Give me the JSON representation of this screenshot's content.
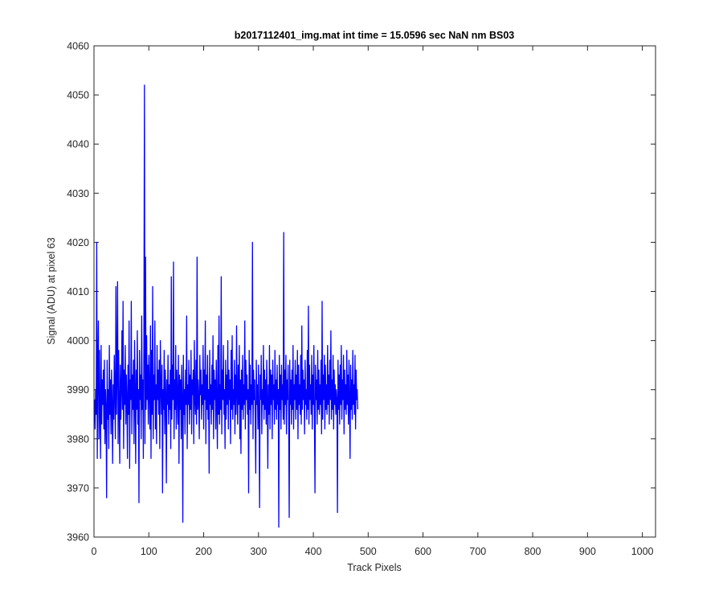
{
  "chart_data": {
    "type": "line",
    "title": "b2017112401_img.mat int time = 15.0596 sec  NaN nm BS03",
    "xlabel": "Track Pixels",
    "ylabel": "Signal (ADU) at pixel 63",
    "xlim": [
      0,
      1024
    ],
    "ylim": [
      3960,
      4060
    ],
    "xticks": [
      0,
      100,
      200,
      300,
      400,
      500,
      600,
      700,
      800,
      900,
      1000
    ],
    "yticks": [
      3960,
      3970,
      3980,
      3990,
      4000,
      4010,
      4020,
      4030,
      4040,
      4050,
      4060
    ],
    "grid": false,
    "legend": "none",
    "series": [
      {
        "color": "#0000ff",
        "x_start": 1,
        "x_step": 1,
        "values": [
          3988,
          3982,
          3990,
          3985,
          4020,
          3976,
          3995,
          4004,
          3980,
          3998,
          3986,
          3976,
          3999,
          3983,
          3992,
          3987,
          3994,
          3982,
          3996,
          3979,
          3990,
          3986,
          3968,
          3996,
          3984,
          3990,
          3978,
          3999,
          3985,
          3992,
          3981,
          3994,
          3987,
          3975,
          3991,
          3984,
          3997,
          3989,
          3980,
          4011,
          3985,
          3993,
          4012,
          3979,
          3998,
          3987,
          3975,
          3995,
          3984,
          3990,
          4002,
          3986,
          4008,
          3978,
          3994,
          3987,
          3999,
          3983,
          3993,
          3988,
          3976,
          3995,
          3985,
          4004,
          3974,
          3992,
          3988,
          4008,
          3981,
          3993,
          3986,
          3996,
          3979,
          4000,
          3990,
          3975,
          3994,
          3986,
          4002,
          3983,
          3990,
          3967,
          3998,
          3988,
          3993,
          3980,
          4005,
          3986,
          3992,
          3976,
          3999,
          4052,
          3979,
          4017,
          3986,
          4001,
          3988,
          3995,
          3983,
          3997,
          3990,
          3982,
          4003,
          3976,
          3998,
          3985,
          4011,
          3980,
          3993,
          3988,
          4004,
          3982,
          3991,
          3979,
          3999,
          3988,
          3994,
          3985,
          3996,
          3978,
          4000,
          3991,
          3985,
          3995,
          3969,
          3990,
          3986,
          3998,
          3981,
          3994,
          3989,
          3971,
          3992,
          3987,
          3997,
          3983,
          3991,
          3986,
          3994,
          3978,
          4013,
          3984,
          3995,
          3988,
          4016,
          3980,
          3992,
          3986,
          3999,
          3982,
          3994,
          3989,
          3983,
          3997,
          3975,
          3993,
          3986,
          3992,
          3980,
          3995,
          3988,
          3963,
          3997,
          3985,
          3990,
          3981,
          3994,
          3987,
          4005,
          3978,
          3991,
          3987,
          3996,
          3983,
          3993,
          3986,
          3998,
          3981,
          3992,
          3989,
          3994,
          3979,
          4000,
          3988,
          3985,
          3996,
          3983,
          4017,
          3986,
          3992,
          3988,
          3980,
          3997,
          3989,
          3994,
          3984,
          3991,
          3987,
          3999,
          3982,
          3994,
          3988,
          4004,
          3979,
          3993,
          3986,
          3997,
          3984,
          3990,
          3973,
          3998,
          3987,
          3991,
          3983,
          3995,
          3986,
          4001,
          3980,
          3994,
          3988,
          3992,
          3982,
          3996,
          3987,
          3978,
          3999,
          3985,
          4005,
          3983,
          3991,
          3986,
          4013,
          3981,
          3994,
          3988,
          3999,
          3985,
          3990,
          3978,
          3996,
          3984,
          3993,
          3987,
          4000,
          3982,
          3994,
          3988,
          3992,
          3979,
          3998,
          3986,
          4001,
          3984,
          3990,
          3987,
          3996,
          3981,
          3993,
          3985,
          4003,
          3989,
          3983,
          3995,
          3987,
          3999,
          3980,
          3992,
          3977,
          3994,
          3986,
          3997,
          3984,
          3991,
          3987,
          4004,
          3982,
          3996,
          3988,
          3993,
          3985,
          3990,
          3969,
          3998,
          3986,
          3995,
          3983,
          3991,
          3987,
          4020,
          3980,
          3994,
          3988,
          3992,
          3984,
          3973,
          3996,
          3987,
          3991,
          3982,
          3995,
          3985,
          3966,
          3993,
          3988,
          3997,
          3981,
          3990,
          3987,
          3999,
          3984,
          3994,
          3986,
          3992,
          3983,
          3996,
          3988,
          3974,
          3991,
          3985,
          3999,
          3982,
          3994,
          3987,
          3993,
          3980,
          3996,
          3988,
          3991,
          3983,
          3998,
          3986,
          3992,
          3984,
          3995,
          3987,
          3990,
          3962,
          3997,
          3986,
          3993,
          3982,
          3995,
          3988,
          3991,
          3984,
          4022,
          3983,
          3994,
          3987,
          3997,
          3981,
          3992,
          3988,
          3995,
          3985,
          3964,
          3996,
          3987,
          3992,
          3983,
          3994,
          3986,
          3999,
          3982,
          3991,
          3988,
          3996,
          3984,
          3993,
          3986,
          3998,
          3980,
          3995,
          3987,
          3991,
          3985,
          3997,
          3983,
          4003,
          3986,
          3994,
          3988,
          3992,
          3981,
          3996,
          3987,
          3990,
          3984,
          3998,
          3986,
          4007,
          3983,
          3995,
          3988,
          3991,
          3985,
          3997,
          3982,
          3993,
          3987,
          3999,
          3984,
          3969,
          3995,
          3988,
          3992,
          3983,
          3998,
          3986,
          3994,
          3985,
          3991,
          3987,
          3996,
          3981,
          4008,
          3984,
          3993,
          3988,
          3997,
          3982,
          3995,
          3986,
          3991,
          3985,
          3999,
          3987,
          3993,
          3983,
          3996,
          3988,
          4002,
          3984,
          3992,
          3986,
          3997,
          3982,
          3994,
          3987,
          3991,
          3985,
          3990,
          3988,
          3965,
          3996,
          3986,
          3993,
          3983,
          3995,
          3987,
          3999,
          3984,
          3992,
          3988,
          3997,
          3981,
          3994,
          3986,
          3991,
          3985,
          3998,
          3987,
          3993,
          3983,
          3996,
          3988,
          3976,
          3995,
          3986,
          3992,
          3984,
          3998,
          3987,
          3991,
          3985,
          3997,
          3982,
          3994,
          3988,
          3990,
          3986
        ]
      }
    ]
  }
}
